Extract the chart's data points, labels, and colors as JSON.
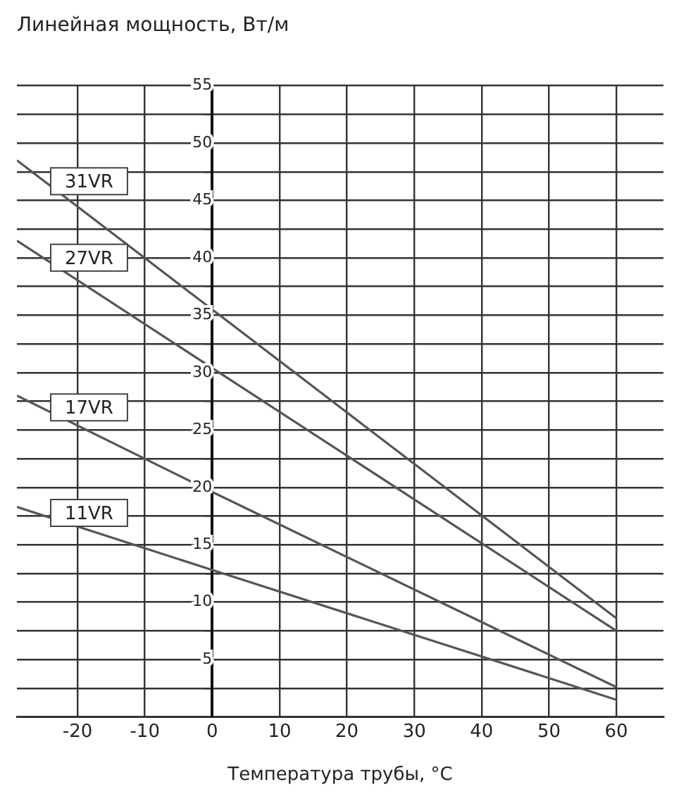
{
  "chart_data": {
    "type": "line",
    "title": "Линейная мощность, Вт/м",
    "xlabel": "Температура трубы, °C",
    "xlim": [
      -29,
      67
    ],
    "xticks": [
      -20,
      -10,
      0,
      10,
      20,
      30,
      40,
      50,
      60
    ],
    "ylim": [
      0,
      55
    ],
    "yticks": [
      {
        "value": 0,
        "label": null
      },
      {
        "value": 2.5,
        "label": null
      },
      5,
      {
        "value": 7.5,
        "label": null
      },
      10,
      {
        "value": 12.5,
        "label": null
      },
      15,
      {
        "value": 17.5,
        "label": null
      },
      20,
      {
        "value": 22.5,
        "label": null
      },
      25,
      {
        "value": 27.5,
        "label": null
      },
      30,
      {
        "value": 32.5,
        "label": null
      },
      35,
      {
        "value": 37.5,
        "label": null
      },
      40,
      {
        "value": 42.5,
        "label": null
      },
      45,
      {
        "value": 47.5,
        "label": null
      },
      50,
      {
        "value": 52.5,
        "label": null
      },
      55
    ],
    "grid": true,
    "legend": false,
    "marker": "none",
    "line_style": "solid",
    "series": [
      {
        "name": "31VR",
        "color": "#555555",
        "x": [
          -29,
          0,
          60
        ],
        "values": [
          48.5,
          35.5,
          8.6
        ]
      },
      {
        "name": "27VR",
        "color": "#555555",
        "x": [
          -29,
          0,
          60
        ],
        "values": [
          41.5,
          30.4,
          7.5
        ]
      },
      {
        "name": "17VR",
        "color": "#555555",
        "x": [
          -29,
          0,
          60
        ],
        "values": [
          28,
          19.6,
          2.6
        ]
      },
      {
        "name": "11VR",
        "color": "#555555",
        "x": [
          -29,
          0,
          60
        ],
        "values": [
          18.3,
          12.8,
          1.5
        ]
      }
    ]
  }
}
